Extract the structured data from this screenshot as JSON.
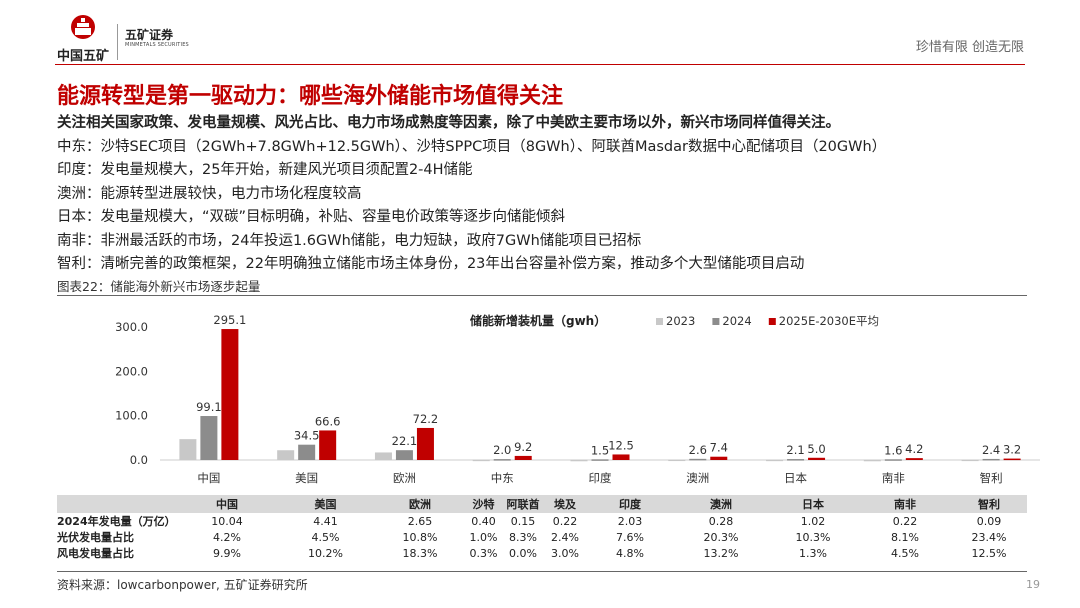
{
  "header": {
    "logo_cn": "中国五矿",
    "company": "五矿证券",
    "company_en": "MINMETALS SECURITIES",
    "slogan": "珍惜有限  创造无限",
    "brand_color": "#c00000"
  },
  "title": "能源转型是第一驱动力：哪些海外储能市场值得关注",
  "lead": "关注相关国家政策、发电量规模、风光占比、电力市场成熟度等因素，除了中美欧主要市场以外，新兴市场同样值得关注。",
  "bullets": [
    "中东：沙特SEC项目（2GWh+7.8GWh+12.5GWh）、沙特SPPC项目（8GWh）、阿联酋Masdar数据中心配储项目（20GWh）",
    "印度：发电量规模大，25年开始，新建风光项目须配置2-4H储能",
    "澳洲：能源转型进展较快，电力市场化程度较高",
    "日本：发电量规模大，“双碳”目标明确，补贴、容量电价政策等逐步向储能倾斜",
    "南非：非洲最活跃的市场，24年投运1.6GWh储能，电力短缺，政府7GWh储能项目已招标",
    "智利：清晰完善的政策框架，22年明确独立储能市场主体身份，23年出台容量补偿方案，推动多个大型储能项目启动"
  ],
  "figure_caption": "图表22：储能海外新兴市场逐步起量",
  "chart_data": {
    "type": "bar",
    "title": "储能新增装机量（gwh）",
    "categories": [
      "中国",
      "美国",
      "欧洲",
      "中东",
      "印度",
      "澳洲",
      "日本",
      "南非",
      "智利"
    ],
    "series": [
      {
        "name": "2023",
        "color": "#c8c8c8",
        "values": [
          47,
          22,
          17,
          0.8,
          0.5,
          1.0,
          0.8,
          0.5,
          0.9
        ]
      },
      {
        "name": "2024",
        "color": "#8c8c8c",
        "values": [
          99.1,
          34.5,
          22.1,
          2.0,
          1.5,
          2.6,
          2.1,
          1.6,
          2.4
        ]
      },
      {
        "name": "2025E-2030E平均",
        "color": "#c00000",
        "values": [
          295.1,
          66.6,
          72.2,
          9.2,
          12.5,
          7.4,
          5.0,
          4.2,
          3.2
        ]
      }
    ],
    "labeled_series": [
      1,
      2
    ],
    "yticks": [
      "0.0",
      "100.0",
      "200.0",
      "300.0"
    ],
    "ylim": [
      0,
      320
    ],
    "grid": false,
    "legend_position": "top-right"
  },
  "table": {
    "headers": [
      "中国",
      "美国",
      "欧洲",
      "沙特",
      "阿联酋",
      "埃及",
      "印度",
      "澳洲",
      "日本",
      "南非",
      "智利"
    ],
    "rows": [
      {
        "label": "2024年发电量（万亿）",
        "values": [
          "10.04",
          "4.41",
          "2.65",
          "0.40",
          "0.15",
          "0.22",
          "2.03",
          "0.28",
          "1.02",
          "0.22",
          "0.09"
        ]
      },
      {
        "label": "光伏发电量占比",
        "values": [
          "4.2%",
          "4.5%",
          "10.8%",
          "1.0%",
          "8.3%",
          "2.4%",
          "7.6%",
          "20.3%",
          "10.3%",
          "8.1%",
          "23.4%"
        ]
      },
      {
        "label": "风电发电量占比",
        "values": [
          "9.9%",
          "10.2%",
          "18.3%",
          "0.3%",
          "0.0%",
          "3.0%",
          "4.8%",
          "13.2%",
          "1.3%",
          "4.5%",
          "12.5%"
        ]
      }
    ]
  },
  "source": "资料来源：lowcarbonpower, 五矿证券研究所",
  "page_number": "19"
}
